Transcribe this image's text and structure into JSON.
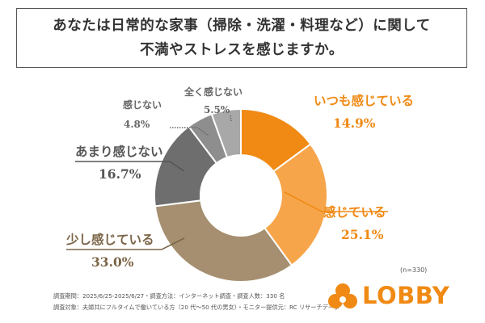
{
  "title": {
    "line1": "あなたは日常的な家事（掃除・洗濯・料理など）に関して",
    "line2": "不満やストレスを感じますか。"
  },
  "chart_data": {
    "type": "pie",
    "donut": true,
    "sample_note": "(n=330)",
    "slices": [
      {
        "label": "いつも感じている",
        "value": 14.9,
        "display": "14.9%",
        "color": "#f08a14"
      },
      {
        "label": "感じている",
        "value": 25.1,
        "display": "25.1%",
        "color": "#f7a54a"
      },
      {
        "label": "少し感じている",
        "value": 33.0,
        "display": "33.0%",
        "color": "#a58f70"
      },
      {
        "label": "あまり感じない",
        "value": 16.7,
        "display": "16.7%",
        "color": "#6e6e6e"
      },
      {
        "label": "感じない",
        "value": 4.8,
        "display": "4.8%",
        "color": "#8e8e8e"
      },
      {
        "label": "全く感じない",
        "value": 5.5,
        "display": "5.5%",
        "color": "#a8a8a8"
      }
    ]
  },
  "footer": {
    "line1": "調査期間：2025/6/25-2025/6/27・調査方法：インターネット調査・調査人数：330 名",
    "line2": "調査対象：夫婦共にフルタイムで働いている方（20 代～50 代の男女）・モニター提供元：RC リサーチデータ"
  },
  "logo": {
    "text": "LOBBY",
    "color": "#f08a14"
  }
}
